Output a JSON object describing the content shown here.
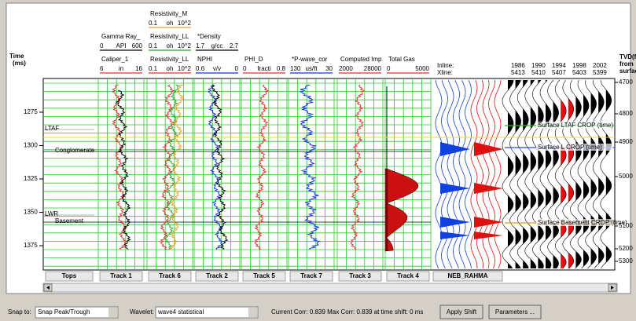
{
  "time_axis": {
    "title": "Time",
    "unit": "(ms)",
    "ticks": [
      1275,
      1300,
      1325,
      1350,
      1375
    ]
  },
  "tops": {
    "label": "Tops",
    "markers": [
      "LTAF",
      "Conglomerate",
      "LWR",
      "Basement"
    ]
  },
  "tracks": [
    {
      "label": "Track 1",
      "curves": [
        {
          "name": "Caliper_1",
          "min": "6",
          "unit": "in",
          "max": "16",
          "color": "#e03030"
        },
        {
          "name": "Gamma Ray_",
          "min": "0",
          "unit": "API",
          "max": "600",
          "color": "#000000"
        }
      ]
    },
    {
      "label": "Track 6",
      "curves": [
        {
          "name": "Resistivity_LL",
          "min": "0.1",
          "unit": "oh",
          "max": "10^2",
          "color": "#e03030"
        },
        {
          "name": "Resistivity_LL",
          "min": "0.1",
          "unit": "oh",
          "max": "10^2",
          "color": "#30a030"
        },
        {
          "name": "Resistivity_M",
          "min": "0.1",
          "unit": "oh",
          "max": "10^2",
          "color": "#f0a020"
        }
      ]
    },
    {
      "label": "Track 2",
      "curves": [
        {
          "name": "NPHI",
          "min": "0.6",
          "unit": "v/v",
          "max": "0",
          "color": "#1030e0"
        },
        {
          "name": "*Density",
          "min": "1.7",
          "unit": "g/cc",
          "max": "2.7",
          "color": "#000000"
        }
      ]
    },
    {
      "label": "Track 5",
      "curves": [
        {
          "name": "PHI_D",
          "min": "0",
          "unit": "fracti",
          "max": "0.8",
          "color": "#e03030"
        }
      ]
    },
    {
      "label": "Track 7",
      "curves": [
        {
          "name": "*P-wave_cor",
          "min": "130",
          "unit": "us/ft",
          "max": "30",
          "color": "#1030e0"
        }
      ]
    },
    {
      "label": "Track 3",
      "curves": [
        {
          "name": "Computed Imp",
          "min": "2000",
          "max": "28000",
          "color": "#e03030"
        }
      ]
    },
    {
      "label": "Track 4",
      "curves": [
        {
          "name": "Total Gas",
          "min": "0",
          "max": "5000",
          "color": "#e03030"
        }
      ]
    }
  ],
  "seismic": {
    "label": "NEB_RAHMA",
    "inline_label": "Inline:",
    "xline_label": "Xline:",
    "inlines": [
      "1986",
      "1990",
      "1994",
      "1998",
      "2002"
    ],
    "xlines": [
      "5413",
      "5410",
      "5407",
      "5403",
      "5399"
    ],
    "horizons": [
      "Surface LTAF CROP (time)",
      "Surface L CROP (time)",
      "Surface Basement CROP (time)"
    ]
  },
  "depth_axis": {
    "title": [
      "TVD(f",
      "from",
      "surfac"
    ],
    "ticks": [
      4700,
      4800,
      4900,
      5000,
      5100,
      5200,
      5300
    ]
  },
  "toolbar": {
    "snap_label": "Snap to:",
    "snap_value": "Snap Peak/Trough",
    "wavelet_label": "Wavelet:",
    "wavelet_value": "wave4 statistical",
    "status": "Current Corr:  0.839  Max Corr: 0.839 at time shift: 0 ms",
    "apply_button": "Apply Shift",
    "parameters_button": "Parameters ..."
  }
}
